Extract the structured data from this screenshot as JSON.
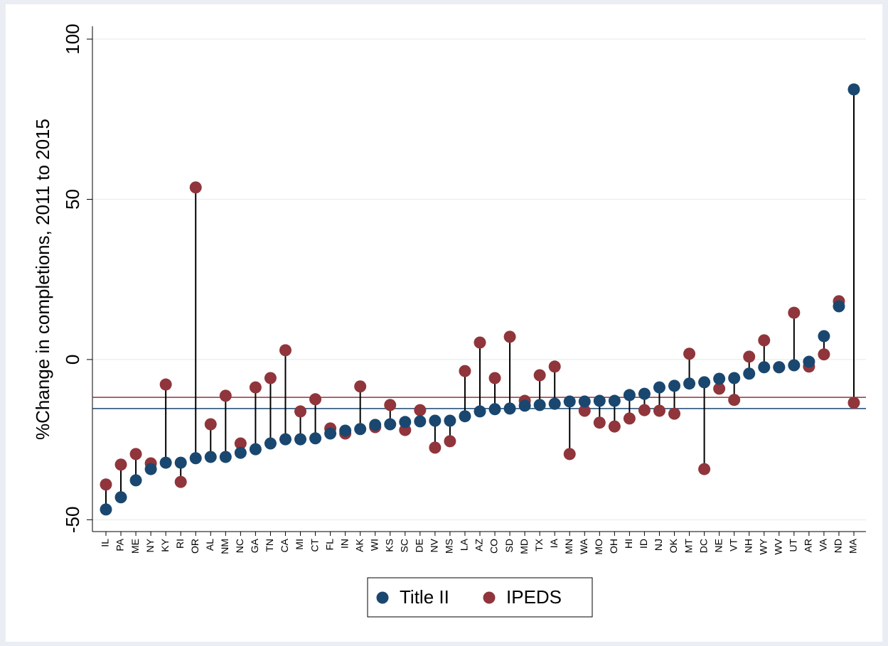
{
  "chart_data": {
    "type": "dot_pair",
    "y_axis_label": "%Change in completions, 2011 to 2015",
    "categories": [
      "IL",
      "PA",
      "ME",
      "NY",
      "KY",
      "RI",
      "OR",
      "AL",
      "NM",
      "NC",
      "GA",
      "TN",
      "CA",
      "MI",
      "CT",
      "FL",
      "IN",
      "AK",
      "WI",
      "KS",
      "SC",
      "DE",
      "NV",
      "MS",
      "LA",
      "AZ",
      "CO",
      "SD",
      "MD",
      "TX",
      "IA",
      "MN",
      "WA",
      "MO",
      "OH",
      "HI",
      "ID",
      "NJ",
      "OK",
      "MT",
      "DC",
      "NE",
      "VT",
      "NH",
      "WY",
      "WV",
      "UT",
      "AR",
      "VA",
      "ND",
      "MA"
    ],
    "series": [
      {
        "name": "Title II",
        "color": "#1a476f",
        "values": [
          -46.8,
          -43,
          -37.7,
          -34.2,
          -32.2,
          -32.2,
          -30.8,
          -30.4,
          -30.4,
          -29.1,
          -28,
          -26.2,
          -24.9,
          -24.9,
          -24.6,
          -23.1,
          -22.2,
          -21.7,
          -20.4,
          -20.2,
          -19.5,
          -19.3,
          -19.1,
          -19.1,
          -17.7,
          -16.2,
          -15.5,
          -15.3,
          -14.4,
          -14.2,
          -13.8,
          -13.1,
          -13.1,
          -12.9,
          -12.9,
          -11.1,
          -10.7,
          -8.7,
          -8.2,
          -7.5,
          -7.1,
          -6,
          -5.8,
          -4.4,
          -2.4,
          -2.4,
          -1.8,
          -0.7,
          7.3,
          16.6,
          84.3
        ],
        "mean_line": -15.3
      },
      {
        "name": "IPEDS",
        "color": "#90353b",
        "values": [
          -39,
          -32.8,
          -29.5,
          -32.4,
          -7.8,
          -38.2,
          53.7,
          -20.2,
          -11.3,
          -26.2,
          -8.7,
          -5.8,
          2.9,
          -16.2,
          -12.4,
          -21.5,
          -23.1,
          -8.4,
          -21.1,
          -14.2,
          -22,
          -15.8,
          -27.5,
          -25.5,
          -3.6,
          5.3,
          -5.8,
          7.1,
          -12.9,
          -4.9,
          -2.2,
          -29.5,
          -16,
          -19.7,
          -20.9,
          -18.4,
          -15.8,
          -16,
          -16.9,
          1.8,
          -34.2,
          -9.1,
          -12.6,
          0.9,
          6,
          -2.4,
          14.6,
          -2.2,
          1.6,
          18.2,
          -13.5
        ],
        "mean_line": -11.8
      }
    ],
    "ylim": [
      -53.7,
      104
    ],
    "yticks": [
      -50,
      0,
      50,
      100
    ],
    "grid": true,
    "legend": "bottom"
  }
}
